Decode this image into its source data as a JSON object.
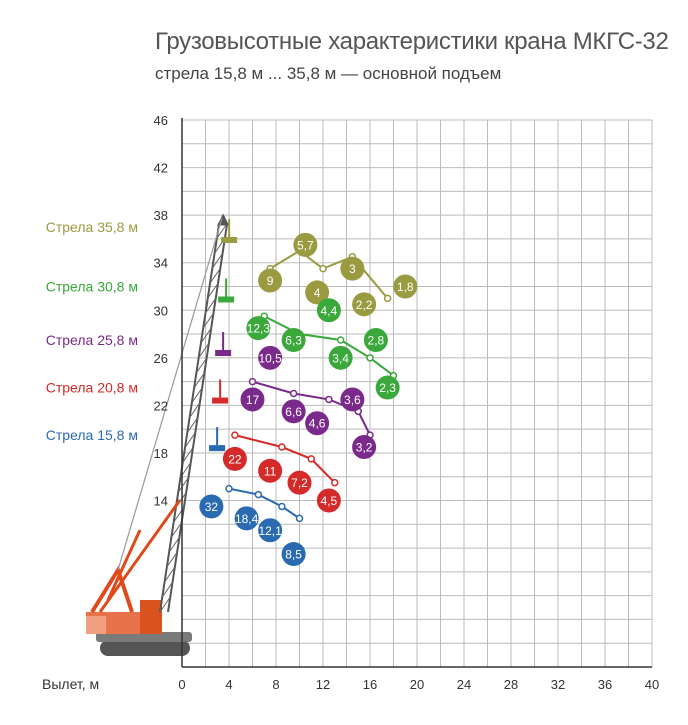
{
  "chart_data": {
    "type": "scatter",
    "title": "Грузовысотные характеристики крана МКГС-32",
    "subtitle": "стрела 15,8 м ... 35,8 м — основной подъем",
    "xlabel": "Вылет, м",
    "ylabel": "",
    "xlim": [
      0,
      40
    ],
    "ylim": [
      0,
      46
    ],
    "x_ticks": [
      "0",
      "4",
      "8",
      "12",
      "16",
      "20",
      "24",
      "28",
      "32",
      "36",
      "40"
    ],
    "y_ticks": [
      "14",
      "18",
      "22",
      "26",
      "30",
      "34",
      "38",
      "42",
      "46"
    ],
    "grid": true,
    "series": [
      {
        "name": "Стрела 35,8 м",
        "color": "#9a9a40",
        "points": [
          {
            "x": 7.5,
            "y": 33.5
          },
          {
            "x": 10,
            "y": 35
          },
          {
            "x": 12,
            "y": 33.5
          },
          {
            "x": 14.5,
            "y": 34.5
          },
          {
            "x": 17.5,
            "y": 31
          }
        ],
        "labels": [
          {
            "text": "9",
            "x": 7.5,
            "y": 32.5
          },
          {
            "x": 10.5,
            "y": 35.5,
            "text": "5,7"
          },
          {
            "x": 11.5,
            "y": 31.5,
            "text": "4"
          },
          {
            "x": 14.5,
            "y": 33.5,
            "text": "3"
          },
          {
            "x": 15.5,
            "y": 30.5,
            "text": "2,2"
          },
          {
            "x": 19,
            "y": 32,
            "text": "1,8"
          }
        ]
      },
      {
        "name": "Стрела 30,8 м",
        "color": "#3aa83a",
        "points": [
          {
            "x": 7,
            "y": 29.5
          },
          {
            "x": 10,
            "y": 28
          },
          {
            "x": 13.5,
            "y": 27.5
          },
          {
            "x": 16,
            "y": 26
          },
          {
            "x": 18,
            "y": 24.5
          }
        ],
        "labels": [
          {
            "text": "12,3",
            "x": 6.5,
            "y": 28.5
          },
          {
            "x": 9.5,
            "y": 27.5,
            "text": "6,3"
          },
          {
            "x": 12.5,
            "y": 30,
            "text": "4,4"
          },
          {
            "x": 13.5,
            "y": 26,
            "text": "3,4"
          },
          {
            "x": 16.5,
            "y": 27.5,
            "text": "2,8"
          },
          {
            "x": 17.5,
            "y": 23.5,
            "text": "2,3"
          }
        ]
      },
      {
        "name": "Стрела 25,8 м",
        "color": "#7a2a8a",
        "points": [
          {
            "x": 6,
            "y": 24
          },
          {
            "x": 9.5,
            "y": 23
          },
          {
            "x": 12.5,
            "y": 22.5
          },
          {
            "x": 15,
            "y": 21.5
          },
          {
            "x": 16,
            "y": 19.5
          }
        ],
        "labels": [
          {
            "text": "10,5",
            "x": 7.5,
            "y": 26
          },
          {
            "x": 6,
            "y": 22.5,
            "text": "17"
          },
          {
            "x": 9.5,
            "y": 21.5,
            "text": "6,6"
          },
          {
            "x": 11.5,
            "y": 20.5,
            "text": "4,6"
          },
          {
            "x": 14.5,
            "y": 22.5,
            "text": "3,6"
          },
          {
            "x": 15.5,
            "y": 18.5,
            "text": "3,2"
          }
        ]
      },
      {
        "name": "Стрела 20,8 м",
        "color": "#d52a2a",
        "points": [
          {
            "x": 4.5,
            "y": 19.5
          },
          {
            "x": 8.5,
            "y": 18.5
          },
          {
            "x": 11,
            "y": 17.5
          },
          {
            "x": 13,
            "y": 15.5
          }
        ],
        "labels": [
          {
            "text": "22",
            "x": 4.5,
            "y": 17.5
          },
          {
            "x": 7.5,
            "y": 16.5,
            "text": "11"
          },
          {
            "x": 10,
            "y": 15.5,
            "text": "7,2"
          },
          {
            "x": 12.5,
            "y": 14,
            "text": "4,5"
          }
        ]
      },
      {
        "name": "Стрела 15,8 м",
        "color": "#2a6ab0",
        "points": [
          {
            "x": 4,
            "y": 15
          },
          {
            "x": 6.5,
            "y": 14.5
          },
          {
            "x": 8.5,
            "y": 13.5
          },
          {
            "x": 10,
            "y": 12.5
          }
        ],
        "labels": [
          {
            "text": "32",
            "x": 2.5,
            "y": 13.5
          },
          {
            "x": 5.5,
            "y": 12.5,
            "text": "18,4"
          },
          {
            "x": 7.5,
            "y": 11.5,
            "text": "12,1"
          },
          {
            "x": 9.5,
            "y": 9.5,
            "text": "8,5"
          }
        ]
      }
    ]
  }
}
